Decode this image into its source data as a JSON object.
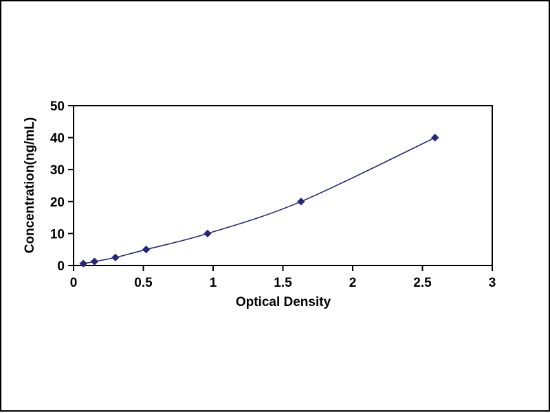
{
  "chart_data": {
    "type": "line",
    "title": "",
    "xlabel": "Optical Density",
    "ylabel": "Concentration(ng/mL)",
    "x": [
      0.07,
      0.15,
      0.3,
      0.52,
      0.96,
      1.63,
      2.59
    ],
    "y": [
      0.6,
      1.25,
      2.5,
      5,
      10,
      20,
      40
    ],
    "xlim": [
      0,
      3
    ],
    "ylim": [
      0,
      50
    ],
    "xticks": [
      0,
      0.5,
      1,
      1.5,
      2,
      2.5,
      3
    ],
    "xtick_labels": [
      "0",
      "0.5",
      "1",
      "1.5",
      "2",
      "2.5",
      "3"
    ],
    "yticks": [
      0,
      10,
      20,
      30,
      40,
      50
    ],
    "ytick_labels": [
      "0",
      "10",
      "20",
      "30",
      "40",
      "50"
    ],
    "grid": false,
    "legend": null,
    "marker": "diamond",
    "line_color": "#26267d",
    "marker_color": "#26267d",
    "axis_color": "#000000",
    "background_color": "#ffffff"
  }
}
